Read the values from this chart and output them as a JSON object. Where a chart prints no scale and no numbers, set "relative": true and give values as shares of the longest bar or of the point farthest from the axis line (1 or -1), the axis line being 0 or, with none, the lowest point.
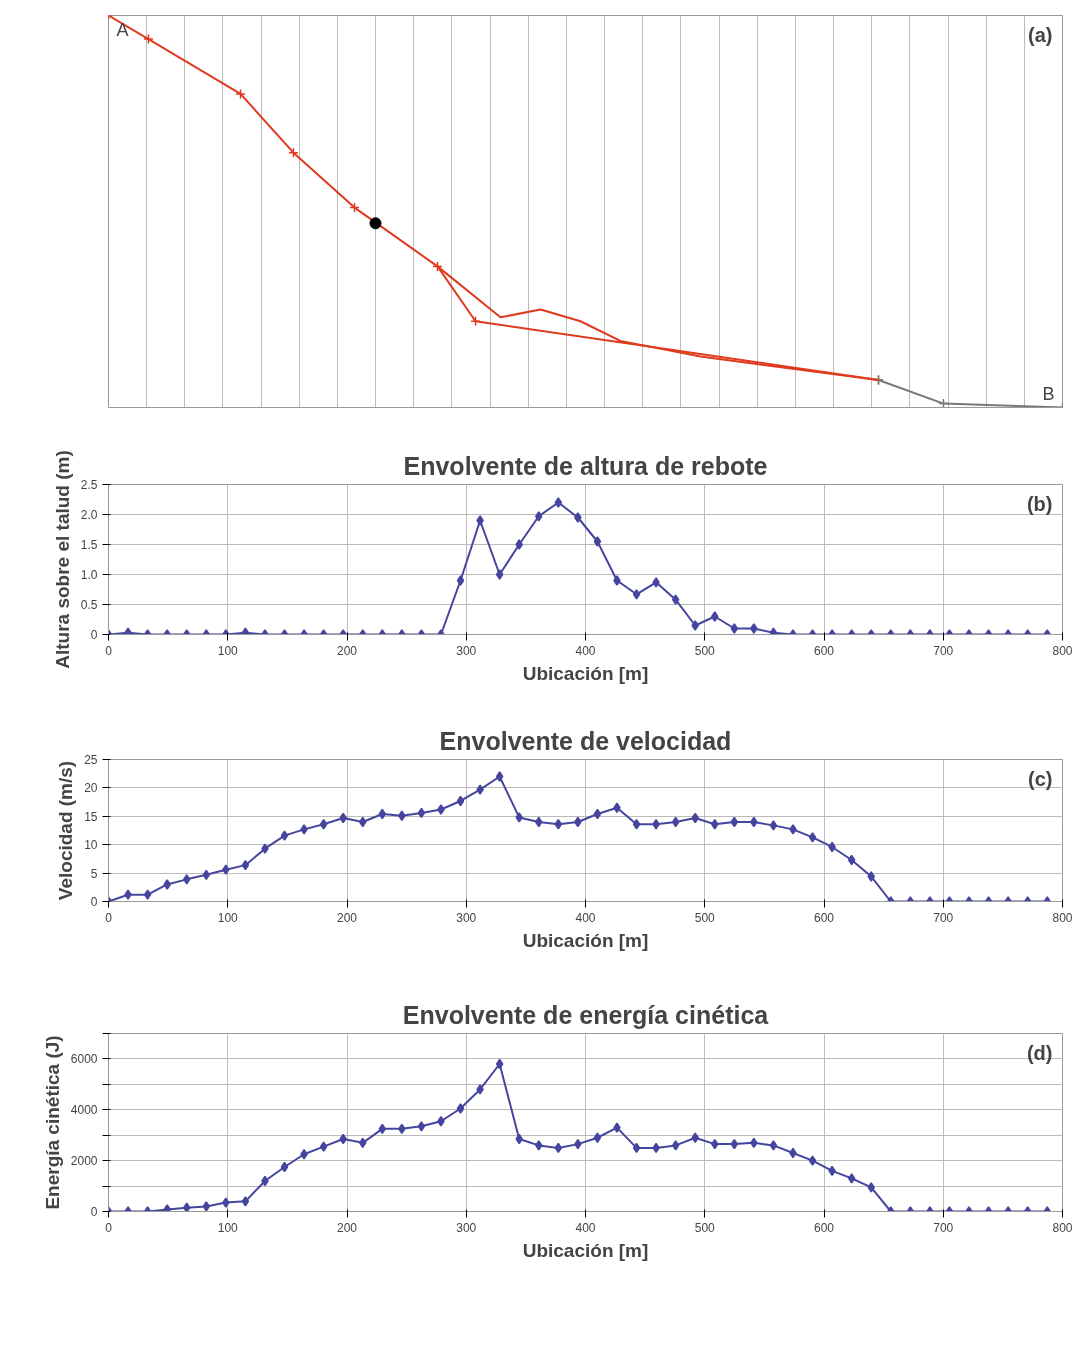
{
  "chart_data": [
    {
      "type": "line",
      "relative": true,
      "xlim": [
        0,
        800
      ],
      "xticks": [
        {
          "value": 0,
          "label": null
        },
        {
          "value": 32,
          "label": null
        },
        {
          "value": 64,
          "label": null
        },
        {
          "value": 96,
          "label": null
        },
        {
          "value": 128,
          "label": null
        },
        {
          "value": 160,
          "label": null
        },
        {
          "value": 192,
          "label": null
        },
        {
          "value": 224,
          "label": null
        },
        {
          "value": 256,
          "label": null
        },
        {
          "value": 288,
          "label": null
        },
        {
          "value": 320,
          "label": null
        },
        {
          "value": 352,
          "label": null
        },
        {
          "value": 384,
          "label": null
        },
        {
          "value": 416,
          "label": null
        },
        {
          "value": 448,
          "label": null
        },
        {
          "value": 480,
          "label": null
        },
        {
          "value": 512,
          "label": null
        },
        {
          "value": 544,
          "label": null
        },
        {
          "value": 576,
          "label": null
        },
        {
          "value": 608,
          "label": null
        },
        {
          "value": 640,
          "label": null
        },
        {
          "value": 672,
          "label": null
        },
        {
          "value": 704,
          "label": null
        },
        {
          "value": 736,
          "label": null
        },
        {
          "value": 768,
          "label": null
        },
        {
          "value": 800,
          "label": null
        }
      ],
      "tick_labels": false,
      "grid": "x",
      "series": [
        {
          "color": "#e03a1e",
          "marker": "cross",
          "x": [
            0,
            33.5,
            110.7,
            155.1,
            206.3,
            275.9,
            307.8,
            645.7
          ],
          "values": [
            1,
            0.94,
            0.8,
            0.65,
            0.51,
            0.36,
            0.22,
            0.07
          ]
        },
        {
          "color": "#777777",
          "marker": "cross",
          "x": [
            645.7,
            700.2,
            800
          ],
          "values": [
            0.07,
            0.01,
            0
          ]
        },
        {
          "color": "#e03a1e",
          "marker": "none",
          "x": [
            275.9,
            328.7,
            362.3,
            395.8,
            429.2,
            496.4,
            645.7
          ],
          "values": [
            0.36,
            0.23,
            0.25,
            0.22,
            0.17,
            0.13,
            0.07
          ]
        },
        {
          "type": "scatter",
          "color": "#000000",
          "marker": "circle",
          "x": [
            223.9
          ],
          "values": [
            0.47
          ]
        }
      ],
      "annotations": [
        "(a)",
        {
          "text": "A",
          "x": 0,
          "y": 1
        },
        {
          "text": "B",
          "x": 800,
          "y": 0
        }
      ]
    },
    {
      "type": "line",
      "title": "Envolvente de altura de rebote",
      "xlabel": "Ubicación [m]",
      "ylabel": "Altura sobre el talud (m)",
      "xlim": [
        0,
        800
      ],
      "xticks": [
        0,
        100,
        200,
        300,
        400,
        500,
        600,
        700,
        800
      ],
      "ylim": [
        0,
        2.5
      ],
      "yticks": [
        0,
        0.5,
        {
          "value": 1,
          "label": "1.0"
        },
        1.5,
        {
          "value": 2,
          "label": "2.0"
        },
        2.5
      ],
      "grid": true,
      "marker": "diamond",
      "annotations": [
        "(b)"
      ],
      "x": [
        0,
        16.4,
        32.8,
        49.2,
        65.6,
        82,
        98.4,
        114.8,
        131.2,
        147.6,
        164,
        180.4,
        196.8,
        213.2,
        229.6,
        246,
        262.4,
        278.8,
        295.2,
        311.6,
        328,
        344.4,
        360.8,
        377.2,
        393.6,
        410,
        426.4,
        442.8,
        459.2,
        475.6,
        492,
        508.4,
        524.8,
        541.2,
        557.6,
        574,
        590.4,
        606.8,
        623.2,
        639.6,
        656,
        672.4,
        688.8,
        705.2,
        721.6,
        738,
        754.4,
        770.8,
        787.2
      ],
      "series": [
        {
          "color": "#45459f",
          "values": [
            0,
            0.03,
            0,
            0,
            0,
            0,
            0,
            0.03,
            0,
            0,
            0,
            0,
            0,
            0,
            0,
            0,
            0,
            0,
            0.9,
            1.9,
            1.0,
            1.5,
            1.97,
            2.2,
            1.95,
            1.55,
            0.9,
            0.67,
            0.87,
            0.58,
            0.15,
            0.3,
            0.1,
            0.1,
            0.03,
            0,
            0,
            0,
            0,
            0,
            0,
            0,
            0,
            0,
            0,
            0,
            0,
            0,
            0
          ]
        }
      ]
    },
    {
      "type": "line",
      "title": "Envolvente de velocidad",
      "xlabel": "Ubicación [m]",
      "ylabel": "Velocidad (m/s)",
      "xlim": [
        0,
        800
      ],
      "xticks": [
        0,
        100,
        200,
        300,
        400,
        500,
        600,
        700,
        800
      ],
      "ylim": [
        0,
        25
      ],
      "yticks": [
        0,
        5,
        10,
        15,
        20,
        25
      ],
      "grid": true,
      "marker": "diamond",
      "annotations": [
        "(c)"
      ],
      "x": [
        0,
        16.4,
        32.8,
        49.2,
        65.6,
        82,
        98.4,
        114.8,
        131.2,
        147.6,
        164,
        180.4,
        196.8,
        213.2,
        229.6,
        246,
        262.4,
        278.8,
        295.2,
        311.6,
        328,
        344.4,
        360.8,
        377.2,
        393.6,
        410,
        426.4,
        442.8,
        459.2,
        475.6,
        492,
        508.4,
        524.8,
        541.2,
        557.6,
        574,
        590.4,
        606.8,
        623.2,
        639.6,
        656,
        672.4,
        688.8,
        705.2,
        721.6,
        738,
        754.4,
        770.8,
        787.2
      ],
      "series": [
        {
          "color": "#45459f",
          "values": [
            0,
            1.2,
            1.2,
            3,
            3.9,
            4.7,
            5.6,
            6.4,
            9.3,
            11.6,
            12.7,
            13.6,
            14.7,
            14,
            15.4,
            15.1,
            15.6,
            16.2,
            17.7,
            19.7,
            22,
            14.8,
            14,
            13.6,
            14,
            15.4,
            16.5,
            13.6,
            13.6,
            14,
            14.7,
            13.6,
            14,
            14,
            13.4,
            12.7,
            11.3,
            9.6,
            7.3,
            4.4,
            0,
            0,
            0,
            0,
            0,
            0,
            0,
            0,
            0
          ]
        }
      ]
    },
    {
      "type": "line",
      "title": "Envolvente de energía cinética",
      "xlabel": "Ubicación [m]",
      "ylabel": "Energía cinética (J)",
      "xlim": [
        0,
        800
      ],
      "xticks": [
        0,
        100,
        200,
        300,
        400,
        500,
        600,
        700,
        800
      ],
      "ylim": [
        0,
        7000
      ],
      "yticks": [
        0,
        {
          "value": 1000,
          "label": null
        },
        2000,
        {
          "value": 3000,
          "label": null
        },
        4000,
        {
          "value": 5000,
          "label": null
        },
        6000,
        {
          "value": 7000,
          "label": null
        }
      ],
      "grid": true,
      "marker": "diamond",
      "annotations": [
        "(d)"
      ],
      "x": [
        0,
        16.4,
        32.8,
        49.2,
        65.6,
        82,
        98.4,
        114.8,
        131.2,
        147.6,
        164,
        180.4,
        196.8,
        213.2,
        229.6,
        246,
        262.4,
        278.8,
        295.2,
        311.6,
        328,
        344.4,
        360.8,
        377.2,
        393.6,
        410,
        426.4,
        442.8,
        459.2,
        475.6,
        492,
        508.4,
        524.8,
        541.2,
        557.6,
        574,
        590.4,
        606.8,
        623.2,
        639.6,
        656,
        672.4,
        688.8,
        705.2,
        721.6,
        738,
        754.4,
        770.8,
        787.2
      ],
      "series": [
        {
          "color": "#45459f",
          "values": [
            0,
            0,
            0,
            80,
            150,
            200,
            350,
            400,
            1200,
            1750,
            2250,
            2550,
            2850,
            2700,
            3250,
            3250,
            3350,
            3550,
            4050,
            4800,
            5800,
            2850,
            2600,
            2500,
            2650,
            2900,
            3300,
            2500,
            2500,
            2600,
            2900,
            2650,
            2650,
            2700,
            2600,
            2300,
            2000,
            1600,
            1300,
            950,
            0,
            0,
            0,
            0,
            0,
            0,
            0,
            0,
            0
          ]
        }
      ]
    }
  ]
}
